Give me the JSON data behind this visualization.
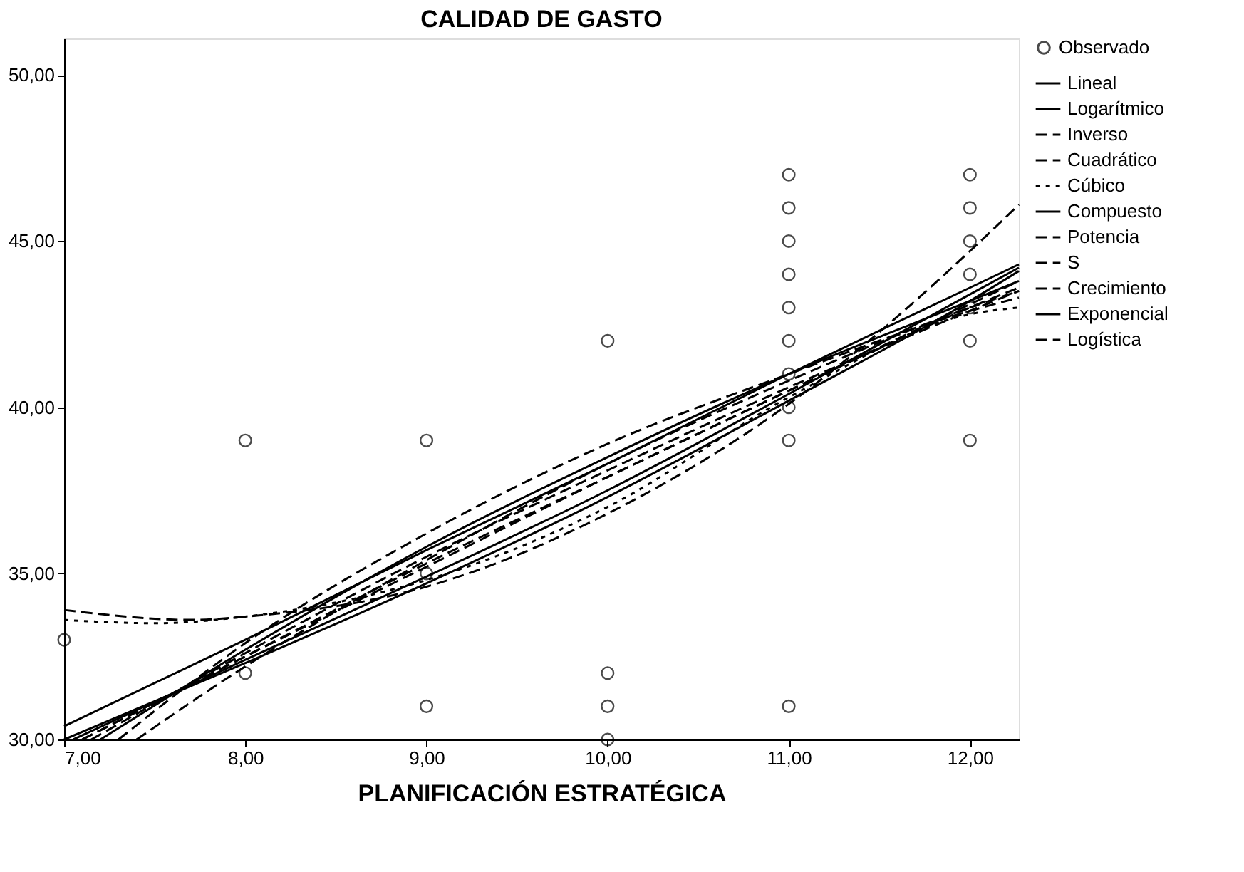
{
  "chart_data": {
    "type": "scatter",
    "title": "CALIDAD DE GASTO",
    "xlabel": "PLANIFICACIÓN ESTRATÉGICA",
    "xlim": [
      7,
      12.27
    ],
    "ylim": [
      30,
      51.1
    ],
    "xticks": [
      {
        "value": 7,
        "label": "7,00"
      },
      {
        "value": 8,
        "label": "8,00"
      },
      {
        "value": 9,
        "label": "9,00"
      },
      {
        "value": 10,
        "label": "10,00"
      },
      {
        "value": 11,
        "label": "11,00"
      },
      {
        "value": 12,
        "label": "12,00"
      }
    ],
    "yticks": [
      {
        "value": 30,
        "label": "30,00"
      },
      {
        "value": 35,
        "label": "35,00"
      },
      {
        "value": 40,
        "label": "40,00"
      },
      {
        "value": 45,
        "label": "45,00"
      },
      {
        "value": 50,
        "label": "50,00"
      }
    ],
    "grid": false,
    "legend": "top right",
    "series": [
      {
        "name": "Observado",
        "marker": "circle",
        "color": "#000000",
        "x": [
          7,
          8,
          8,
          9,
          9,
          9,
          10,
          10,
          10,
          10,
          11,
          11,
          11,
          11,
          11,
          11,
          11,
          11,
          11,
          11,
          12,
          12,
          12,
          12,
          12,
          12,
          12
        ],
        "values": [
          33,
          39,
          32,
          39,
          35,
          31,
          42,
          32,
          31,
          30,
          47,
          46,
          45,
          44,
          43,
          42,
          41,
          40,
          39,
          31,
          47,
          46,
          45,
          44,
          43,
          42,
          39
        ]
      },
      {
        "name": "Lineal",
        "type": "line",
        "line_style": "solid",
        "color": "#000000",
        "x": [
          7,
          8,
          9,
          10,
          11,
          12,
          12.27
        ],
        "values": [
          30.4,
          33.0,
          35.7,
          38.3,
          41.0,
          43.6,
          44.3
        ]
      },
      {
        "name": "Logarítmico",
        "type": "line",
        "line_style": "solid",
        "color": "#000000",
        "x": [
          7.2,
          8,
          9,
          10,
          11,
          12,
          12.27
        ],
        "values": [
          30.0,
          32.7,
          35.8,
          38.5,
          41.0,
          43.2,
          43.8
        ]
      },
      {
        "name": "Inverso",
        "type": "line",
        "line_style": "dashed",
        "color": "#000000",
        "x": [
          7.3,
          8,
          9,
          10,
          11,
          12,
          12.27
        ],
        "values": [
          30.0,
          32.9,
          36.2,
          38.9,
          41.0,
          42.9,
          43.3
        ]
      },
      {
        "name": "Cuadrático",
        "type": "line",
        "line_style": "dashed",
        "color": "#000000",
        "x": [
          7,
          7.7,
          8,
          9,
          10,
          11,
          12,
          12.27
        ],
        "values": [
          33.9,
          33.6,
          33.7,
          34.6,
          36.8,
          40.1,
          44.7,
          46.1
        ]
      },
      {
        "name": "Cúbico",
        "type": "line",
        "line_style": "dotted",
        "color": "#000000",
        "x": [
          7,
          7.5,
          8,
          9,
          10,
          11,
          12,
          12.27
        ],
        "values": [
          33.6,
          33.5,
          33.7,
          34.8,
          37.0,
          40.3,
          42.8,
          43.0
        ]
      },
      {
        "name": "Compuesto",
        "type": "line",
        "line_style": "solid",
        "color": "#000000",
        "x": [
          7.05,
          8,
          9,
          10,
          11,
          12,
          12.27
        ],
        "values": [
          30.0,
          32.4,
          34.9,
          37.5,
          40.4,
          43.4,
          44.2
        ]
      },
      {
        "name": "Potencia",
        "type": "line",
        "line_style": "dashed",
        "color": "#000000",
        "x": [
          7.1,
          8,
          9,
          10,
          11,
          12,
          12.27
        ],
        "values": [
          30.0,
          32.5,
          35.3,
          37.9,
          40.5,
          43.0,
          43.6
        ]
      },
      {
        "name": "S",
        "type": "line",
        "line_style": "dashed",
        "color": "#000000",
        "x": [
          7.4,
          8,
          9,
          10,
          11,
          12,
          12.27
        ],
        "values": [
          30.0,
          32.2,
          35.4,
          38.3,
          40.8,
          43.0,
          43.5
        ]
      },
      {
        "name": "Crecimiento",
        "type": "line",
        "line_style": "dashed",
        "color": "#000000",
        "x": [
          7.1,
          8,
          9,
          10,
          11,
          12,
          12.27
        ],
        "values": [
          30.0,
          32.5,
          35.2,
          37.9,
          40.5,
          43.1,
          43.8
        ]
      },
      {
        "name": "Exponencial",
        "type": "line",
        "line_style": "solid",
        "color": "#000000",
        "x": [
          7,
          8,
          9,
          10,
          11,
          12,
          12.27
        ],
        "values": [
          30.0,
          32.3,
          34.7,
          37.3,
          40.2,
          43.2,
          44.1
        ]
      },
      {
        "name": "Logística",
        "type": "line",
        "line_style": "dashed",
        "color": "#000000",
        "x": [
          7.15,
          8,
          9,
          10,
          11,
          12,
          12.27
        ],
        "values": [
          30.0,
          32.6,
          35.5,
          38.1,
          40.6,
          42.9,
          43.5
        ]
      }
    ]
  }
}
